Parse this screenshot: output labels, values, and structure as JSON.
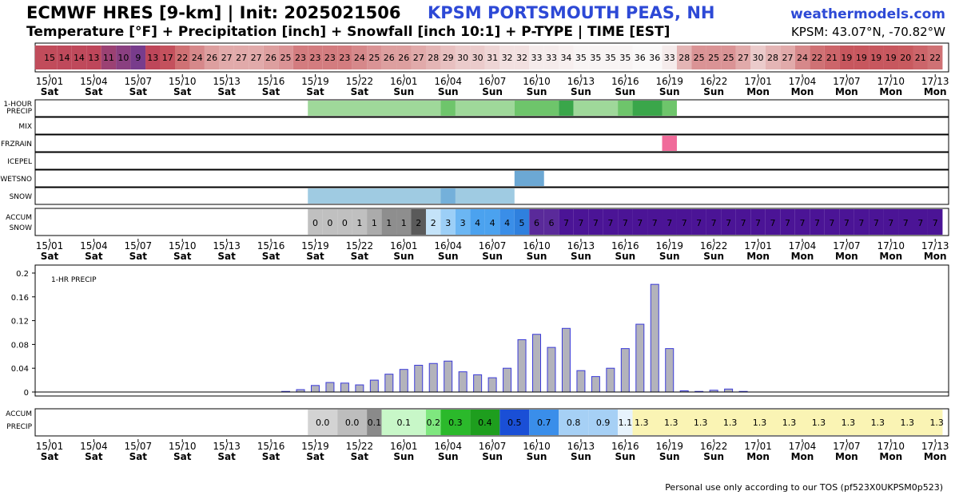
{
  "header": {
    "title": "ECMWF HRES [9-km] | Init: 2025021506",
    "station": "KPSM PORTSMOUTH PEAS, NH",
    "site": "weathermodels.com",
    "subtitle": "Temperature [°F] + Precipitation [inch] + Snowfall [inch 10:1] + P-TYPE | TIME [EST]",
    "coords": "KPSM: 43.07°N, -70.82°W"
  },
  "footer": {
    "note": "Personal use only according to our TOS (pf523X0UKPSM0p523)"
  },
  "time_axis": {
    "labels": [
      {
        "top": "15/01",
        "bottom": "Sat"
      },
      {
        "top": "15/04",
        "bottom": "Sat"
      },
      {
        "top": "15/07",
        "bottom": "Sat"
      },
      {
        "top": "15/10",
        "bottom": "Sat"
      },
      {
        "top": "15/13",
        "bottom": "Sat"
      },
      {
        "top": "15/16",
        "bottom": "Sat"
      },
      {
        "top": "15/19",
        "bottom": "Sat"
      },
      {
        "top": "15/22",
        "bottom": "Sat"
      },
      {
        "top": "16/01",
        "bottom": "Sun"
      },
      {
        "top": "16/04",
        "bottom": "Sun"
      },
      {
        "top": "16/07",
        "bottom": "Sun"
      },
      {
        "top": "16/10",
        "bottom": "Sun"
      },
      {
        "top": "16/13",
        "bottom": "Sun"
      },
      {
        "top": "16/16",
        "bottom": "Sun"
      },
      {
        "top": "16/19",
        "bottom": "Sun"
      },
      {
        "top": "16/22",
        "bottom": "Sun"
      },
      {
        "top": "17/01",
        "bottom": "Mon"
      },
      {
        "top": "17/04",
        "bottom": "Mon"
      },
      {
        "top": "17/07",
        "bottom": "Mon"
      },
      {
        "top": "17/10",
        "bottom": "Mon"
      },
      {
        "top": "17/13",
        "bottom": "Mon"
      }
    ]
  },
  "colors": {
    "rain": "#9fd89a",
    "rain_heavy": "#6ec56b",
    "rain_heaviest": "#3aa64a",
    "frzrain": "#f06b9a",
    "wetsnow": "#6ca8d4",
    "snow": "#9fcbe2",
    "snow_heavy": "#74b0da",
    "bar_fill": "#b3b3bb",
    "bar_stroke": "#3b3bd9"
  },
  "chart_data": [
    {
      "type": "heatmap",
      "name": "temperature_strip",
      "x_start_hour": 0,
      "step_hours": 1,
      "values": [
        15,
        14,
        14,
        13,
        11,
        10,
        9,
        13,
        17,
        22,
        24,
        26,
        27,
        27,
        27,
        26,
        25,
        23,
        23,
        23,
        23,
        24,
        25,
        26,
        26,
        27,
        28,
        29,
        30,
        30,
        31,
        32,
        32,
        33,
        33,
        34,
        35,
        35,
        35,
        35,
        36,
        36,
        33,
        28,
        25,
        25,
        25,
        27,
        30,
        28,
        27,
        24,
        22,
        21,
        19,
        19,
        19,
        19,
        20,
        21,
        22
      ]
    },
    {
      "type": "table",
      "name": "ptype_rows",
      "rows": [
        {
          "label": "1-HOUR PRECIP",
          "segments": [
            {
              "from": 18,
              "to": 27,
              "color": "rain"
            },
            {
              "from": 27,
              "to": 28,
              "color": "rain_heavy"
            },
            {
              "from": 28,
              "to": 32,
              "color": "rain"
            },
            {
              "from": 32,
              "to": 35,
              "color": "rain_heavy"
            },
            {
              "from": 35,
              "to": 36,
              "color": "rain_heaviest"
            },
            {
              "from": 36,
              "to": 39,
              "color": "rain"
            },
            {
              "from": 39,
              "to": 40,
              "color": "rain_heavy"
            },
            {
              "from": 40,
              "to": 42,
              "color": "rain_heaviest"
            },
            {
              "from": 42,
              "to": 43,
              "color": "rain_heavy"
            }
          ]
        },
        {
          "label": "MIX",
          "segments": []
        },
        {
          "label": "FRZRAIN",
          "segments": [
            {
              "from": 42,
              "to": 43,
              "color": "frzrain"
            }
          ]
        },
        {
          "label": "ICEPEL",
          "segments": []
        },
        {
          "label": "WETSNO",
          "segments": [
            {
              "from": 32,
              "to": 34,
              "color": "wetsnow"
            }
          ]
        },
        {
          "label": "SNOW",
          "segments": [
            {
              "from": 18,
              "to": 27,
              "color": "snow"
            },
            {
              "from": 27,
              "to": 28,
              "color": "snow_heavy"
            },
            {
              "from": 28,
              "to": 32,
              "color": "snow"
            }
          ]
        }
      ]
    },
    {
      "type": "heatmap",
      "name": "accum_snow",
      "label": "ACCUM SNOW",
      "x_start_hour": 18,
      "step_hours": 1,
      "values": [
        0,
        0,
        0,
        1,
        1,
        1,
        1,
        2,
        2,
        3,
        3,
        4,
        4,
        4,
        5,
        6,
        6,
        7,
        7,
        7,
        7,
        7,
        7,
        7,
        7,
        7,
        7,
        7,
        7,
        7,
        7,
        7,
        7,
        7,
        7,
        7,
        7,
        7,
        7,
        7,
        7,
        7,
        7
      ],
      "colors": [
        "#c0c0c0",
        "#c0c0c0",
        "#c0c0c0",
        "#c0c0c0",
        "#ababab",
        "#8e8e8e",
        "#8e8e8e",
        "#5a5a5a",
        "#c4e3f9",
        "#9ccff7",
        "#6bb6f3",
        "#4ba2ef",
        "#4ba2ef",
        "#3a8ee8",
        "#2f80de",
        "#5a2a9a",
        "#5a2a9a",
        "#4b1496",
        "#4b1496",
        "#4b1496",
        "#4b1496",
        "#4b1496",
        "#4b1496",
        "#4b1496",
        "#4b1496",
        "#4b1496",
        "#4b1496",
        "#4b1496",
        "#4b1496",
        "#4b1496",
        "#4b1496",
        "#4b1496",
        "#4b1496",
        "#4b1496",
        "#4b1496",
        "#4b1496",
        "#4b1496",
        "#4b1496",
        "#4b1496",
        "#4b1496",
        "#4b1496",
        "#4b1496",
        "#4b1496"
      ]
    },
    {
      "type": "bar",
      "name": "hourly_precip",
      "label": "1-HR PRECIP",
      "x_start_hour": 0,
      "step_hours": 1,
      "values": [
        0.0,
        0.0,
        0.0,
        0.0,
        0.0,
        0.0,
        0.0,
        0.0,
        0.0,
        0.0,
        0.0,
        0.0,
        0.0,
        0.0,
        0.0,
        0.0,
        0.001,
        0.004,
        0.011,
        0.016,
        0.015,
        0.012,
        0.02,
        0.03,
        0.038,
        0.045,
        0.048,
        0.052,
        0.034,
        0.029,
        0.024,
        0.04,
        0.088,
        0.097,
        0.075,
        0.107,
        0.036,
        0.026,
        0.04,
        0.073,
        0.114,
        0.181,
        0.073,
        0.002,
        0.001,
        0.003,
        0.005,
        0.001,
        0.0,
        0.0,
        0.0,
        0.0,
        0.0,
        0.0,
        0.0,
        0.0,
        0.0,
        0.0,
        0.0,
        0.0,
        0.0
      ],
      "ylim": [
        0,
        0.2
      ],
      "yticks": [
        "0",
        "0.04",
        "0.08",
        "0.12",
        "0.16",
        "0.2"
      ]
    },
    {
      "type": "heatmap",
      "name": "accum_precip",
      "label": "ACCUM PRECIP",
      "cells": [
        {
          "from": 18,
          "to": 20,
          "value": "0.0",
          "color": "#d3d3d3"
        },
        {
          "from": 20,
          "to": 22,
          "value": "0.0",
          "color": "#bdbdbd"
        },
        {
          "from": 22,
          "to": 23,
          "value": "0.1",
          "color": "#8a8a8a"
        },
        {
          "from": 23,
          "to": 26,
          "value": "0.1",
          "color": "#c8f7c8"
        },
        {
          "from": 26,
          "to": 27,
          "value": "0.2",
          "color": "#7fe77f"
        },
        {
          "from": 27,
          "to": 29,
          "value": "0.3",
          "color": "#2bb92b"
        },
        {
          "from": 29,
          "to": 31,
          "value": "0.4",
          "color": "#1e9e1e"
        },
        {
          "from": 31,
          "to": 33,
          "value": "0.5",
          "color": "#1a4fd6"
        },
        {
          "from": 33,
          "to": 35,
          "value": "0.7",
          "color": "#3a8eea"
        },
        {
          "from": 35,
          "to": 37,
          "value": "0.8",
          "color": "#a6d0f5"
        },
        {
          "from": 37,
          "to": 39,
          "value": "0.9",
          "color": "#a6d0f5"
        },
        {
          "from": 39,
          "to": 40,
          "value": "1.1",
          "color": "#e7f3fc"
        },
        {
          "from": 40,
          "to": 61,
          "value": "1.3",
          "color": "#faf4b4",
          "repeat_every": 2
        }
      ]
    }
  ]
}
